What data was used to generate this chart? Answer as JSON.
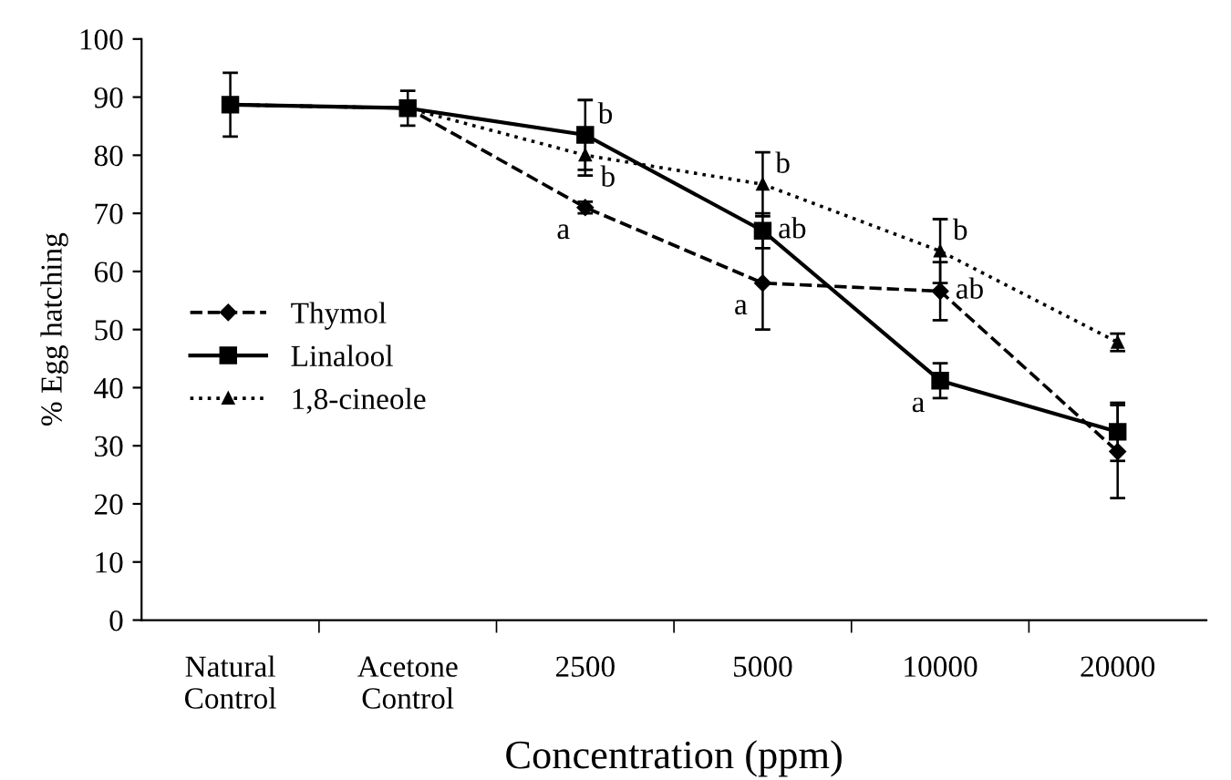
{
  "chart_data": {
    "type": "line",
    "xlabel": "Concentration (ppm)",
    "ylabel": "% Egg hatching",
    "categories": [
      "Natural\nControl",
      "Acetone\nControl",
      "2500",
      "5000",
      "10000",
      "20000"
    ],
    "ylim": [
      0,
      100
    ],
    "yticks": [
      0,
      10,
      20,
      30,
      40,
      50,
      60,
      70,
      80,
      90,
      100
    ],
    "grid": false,
    "legend": "left",
    "series": [
      {
        "name": "Thymol",
        "color": "#000000",
        "line_style": "dashed",
        "marker": "diamond",
        "values": [
          88.7,
          88.1,
          71,
          58,
          56.6,
          29
        ],
        "errors": [
          null,
          null,
          1,
          8,
          5,
          8
        ]
      },
      {
        "name": "Linalool",
        "color": "#000000",
        "line_style": "solid",
        "marker": "square",
        "values": [
          88.7,
          88.1,
          83.5,
          67,
          41.2,
          32.4
        ],
        "errors": [
          5.5,
          3,
          6,
          3,
          3,
          5
        ]
      },
      {
        "name": "1,8-cineole",
        "color": "#000000",
        "line_style": "dotted",
        "marker": "triangle",
        "values": [
          88.7,
          88.1,
          80,
          75,
          63.5,
          47.8
        ],
        "errors": [
          null,
          null,
          3.5,
          5.5,
          5.5,
          1.5
        ]
      }
    ],
    "annotations": [
      {
        "text": "b",
        "x": "2500",
        "y": 83.5
      },
      {
        "text": "b",
        "x": "2500",
        "y": 80
      },
      {
        "text": "a",
        "x": "2500",
        "y": 71
      },
      {
        "text": "b",
        "x": "5000",
        "y": 75
      },
      {
        "text": "ab",
        "x": "5000",
        "y": 67
      },
      {
        "text": "a",
        "x": "5000",
        "y": 58
      },
      {
        "text": "b",
        "x": "10000",
        "y": 63.5
      },
      {
        "text": "ab",
        "x": "10000",
        "y": 56.6
      },
      {
        "text": "a",
        "x": "10000",
        "y": 41.2
      }
    ]
  }
}
